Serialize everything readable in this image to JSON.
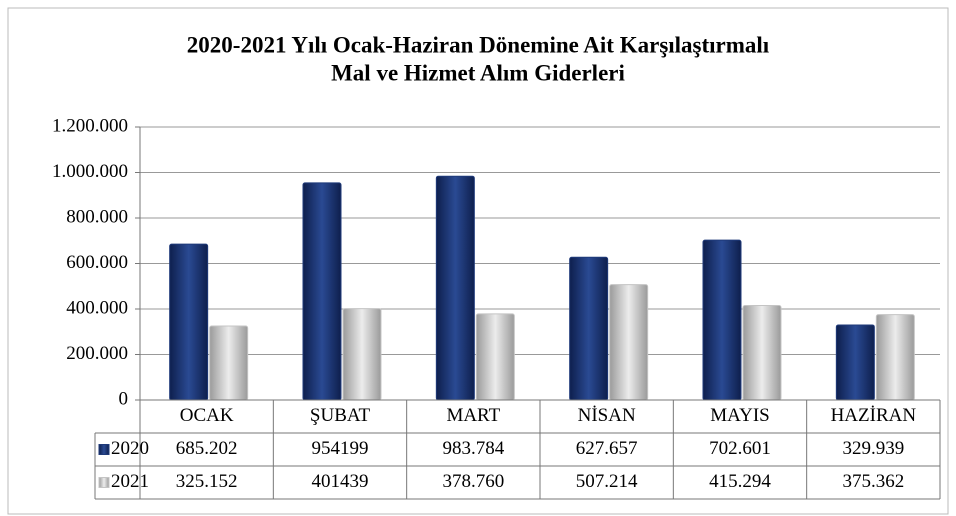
{
  "chart_data": {
    "type": "bar",
    "title": "2020-2021 Yılı Ocak-Haziran Dönemine Ait Karşılaştırmalı",
    "subtitle": "Mal ve Hizmet Alım Giderleri",
    "categories": [
      "OCAK",
      "ŞUBAT",
      "MART",
      "NİSAN",
      "MAYIS",
      "HAZİRAN"
    ],
    "series": [
      {
        "name": "2020",
        "color": "#1f3a7a",
        "values": [
          685202,
          954199,
          983784,
          627657,
          702601,
          329939
        ],
        "value_labels": [
          "685.202",
          "954199",
          "983.784",
          "627.657",
          "702.601",
          "329.939"
        ]
      },
      {
        "name": "2021",
        "color": "#c4c4c4",
        "values": [
          325152,
          401439,
          378760,
          507214,
          415294,
          375362
        ],
        "value_labels": [
          "325.152",
          "401439",
          "378.760",
          "507.214",
          "415.294",
          "375.362"
        ]
      }
    ],
    "ylim": [
      0,
      1200000
    ],
    "yticks": [
      0,
      {
        "value": 200000,
        "label": "200.000"
      },
      {
        "value": 400000,
        "label": "400.000"
      },
      {
        "value": 600000,
        "label": "600.000"
      },
      {
        "value": 800000,
        "label": "800.000"
      },
      {
        "value": 1000000,
        "label": "1.000.000"
      },
      {
        "value": 1200000,
        "label": "1.200.000"
      }
    ],
    "grid": true
  }
}
